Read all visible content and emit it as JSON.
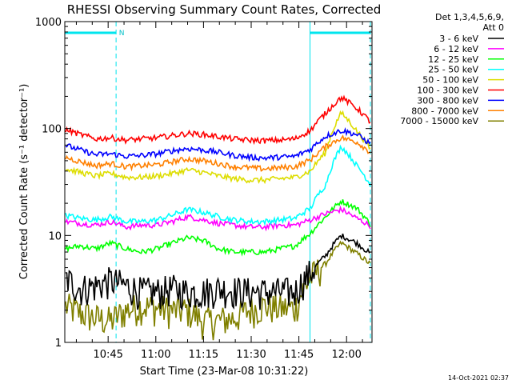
{
  "chart_data": {
    "type": "line",
    "title": "RHESSI Observing Summary Count Rates, Corrected",
    "xlabel": "Start Time (23-Mar-08 10:31:22)",
    "ylabel": "Corrected Count Rate (s⁻¹ detector⁻¹)",
    "y_scale": "log",
    "ylim": [
      1,
      1000
    ],
    "xlim": [
      "10:31:22",
      "12:08:00"
    ],
    "x_ticks": [
      "10:45",
      "11:00",
      "11:15",
      "11:30",
      "11:45",
      "12:00"
    ],
    "y_ticks": [
      "1",
      "10",
      "100",
      "1000"
    ],
    "legend_header": [
      "Det 1,3,4,5,6,9,",
      "Att 0"
    ],
    "legend_position": "right",
    "footer": "14-Oct-2021 02:37",
    "night_marker": "N",
    "night_intervals": [
      [
        "10:31:22",
        "10:47:30"
      ],
      [
        "11:48:30",
        "12:07:30"
      ]
    ],
    "series": [
      {
        "name": "3 - 6 keV",
        "color": "#000000",
        "values": [
          4.0,
          3.2,
          3.4,
          3.8,
          3.4,
          3.0,
          3.0,
          3.2,
          3.0,
          3.0,
          3.2,
          3.1,
          3.0,
          3.0,
          3.0,
          3.0,
          4.5,
          6.5,
          10.0,
          8.5,
          6.5
        ]
      },
      {
        "name": "6 - 12 keV",
        "color": "#ff00ff",
        "values": [
          13.5,
          13.0,
          12.5,
          13.5,
          12.0,
          12.5,
          12.5,
          13.5,
          15.0,
          14.0,
          13.0,
          12.5,
          12.0,
          12.0,
          12.5,
          12.5,
          14.0,
          16.0,
          17.5,
          14.5,
          12.0
        ]
      },
      {
        "name": "12 - 25 keV",
        "color": "#00ff00",
        "values": [
          7.5,
          8.0,
          7.5,
          8.5,
          7.5,
          7.0,
          7.5,
          8.5,
          9.5,
          9.0,
          7.5,
          7.0,
          7.0,
          7.0,
          7.5,
          8.0,
          10.5,
          15.0,
          21.0,
          18.0,
          12.0
        ]
      },
      {
        "name": "25 - 50 keV",
        "color": "#00ffff",
        "values": [
          15.5,
          14.5,
          14.0,
          15.0,
          13.5,
          13.5,
          14.0,
          15.5,
          17.5,
          16.5,
          15.0,
          14.0,
          13.5,
          13.5,
          14.0,
          14.5,
          18.0,
          30.0,
          68.0,
          45.0,
          28.0
        ]
      },
      {
        "name": "50 - 100 keV",
        "color": "#dddd00",
        "values": [
          42.0,
          39.0,
          36.0,
          38.0,
          35.0,
          35.0,
          36.0,
          38.0,
          41.0,
          39.0,
          36.0,
          34.0,
          33.0,
          33.0,
          34.0,
          35.0,
          40.0,
          60.0,
          140.0,
          95.0,
          60.0
        ]
      },
      {
        "name": "100 - 300 keV",
        "color": "#ff0000",
        "values": [
          98.0,
          88.0,
          80.0,
          82.0,
          78.0,
          80.0,
          82.0,
          86.0,
          90.0,
          88.0,
          84.0,
          80.0,
          78.0,
          77.0,
          78.0,
          80.0,
          96.0,
          140.0,
          195.0,
          155.0,
          110.0
        ]
      },
      {
        "name": "300 - 800 keV",
        "color": "#0000ff",
        "values": [
          70.0,
          63.0,
          57.0,
          58.0,
          55.0,
          56.0,
          58.0,
          62.0,
          65.0,
          63.0,
          60.0,
          56.0,
          54.0,
          53.0,
          54.0,
          55.0,
          64.0,
          85.0,
          96.0,
          88.0,
          70.0
        ]
      },
      {
        "name": "800 - 7000 keV",
        "color": "#ff8000",
        "values": [
          54.0,
          49.0,
          45.0,
          47.0,
          44.0,
          45.0,
          46.0,
          49.0,
          52.0,
          50.0,
          47.0,
          44.0,
          43.0,
          42.0,
          43.0,
          44.0,
          51.0,
          68.0,
          82.0,
          75.0,
          58.0
        ]
      },
      {
        "name": "7000 - 15000 keV",
        "color": "#808000",
        "values": [
          2.2,
          1.9,
          1.7,
          1.6,
          2.0,
          2.2,
          2.1,
          2.0,
          2.0,
          1.6,
          1.6,
          1.7,
          2.0,
          2.2,
          2.1,
          2.1,
          4.0,
          5.5,
          8.5,
          6.8,
          5.2
        ]
      }
    ]
  }
}
